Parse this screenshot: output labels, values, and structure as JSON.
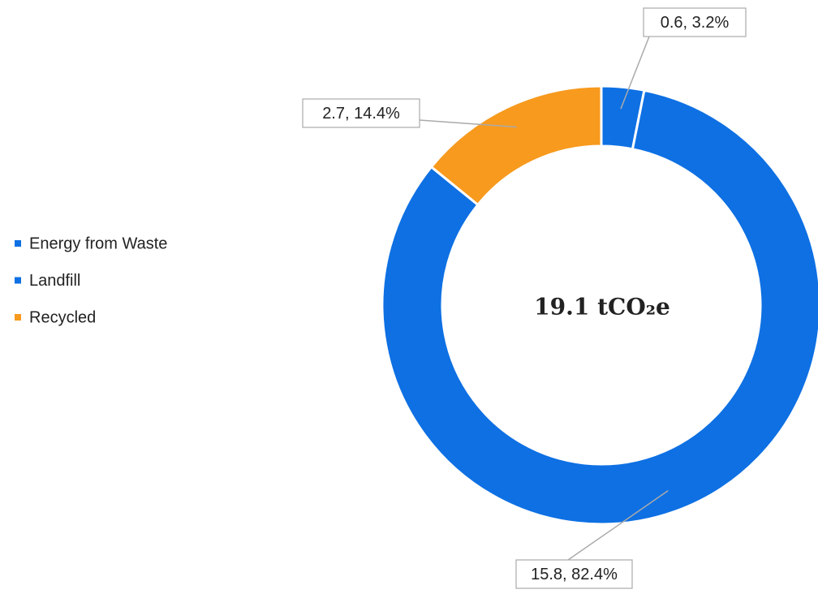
{
  "chart_data": {
    "type": "donut",
    "center_text": "19.1 tCO₂e",
    "categories": [
      "Energy from Waste",
      "Landfill",
      "Recycled"
    ],
    "values": [
      0.6,
      15.8,
      2.7
    ],
    "value_labels": [
      "0.6, 3.2%",
      "15.8, 82.4%",
      "2.7, 14.4%"
    ],
    "colors": [
      "#0e70e3",
      "#0e70e3",
      "#f79a1e"
    ],
    "legend": "left"
  }
}
